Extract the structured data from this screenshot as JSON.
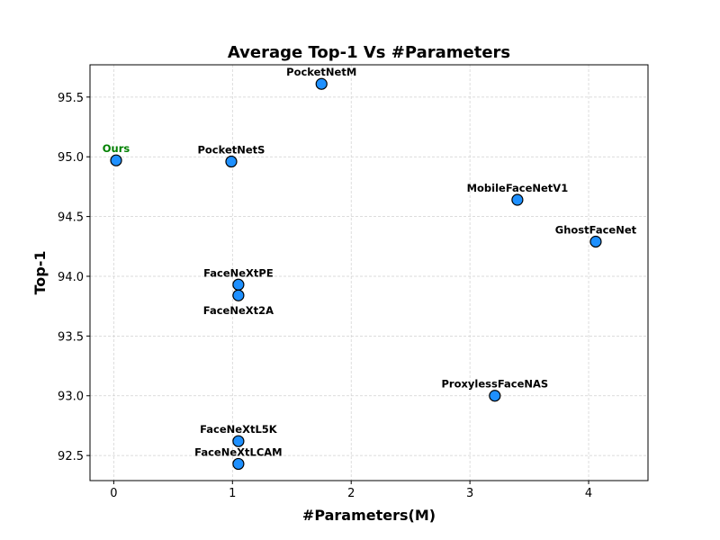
{
  "chart_data": {
    "type": "scatter",
    "title": "Average Top-1 Vs #Parameters",
    "xlabel": "#Parameters(M)",
    "ylabel": "Top-1",
    "xlim": [
      -0.2,
      4.5
    ],
    "ylim": [
      92.29,
      95.77
    ],
    "xticks": [
      0,
      1,
      2,
      3,
      4
    ],
    "xtick_labels": [
      "0",
      "1",
      "2",
      "3",
      "4"
    ],
    "yticks": [
      92.5,
      93.0,
      93.5,
      94.0,
      94.5,
      95.0,
      95.5
    ],
    "ytick_labels": [
      "92.5",
      "93.0",
      "93.5",
      "94.0",
      "94.5",
      "95.0",
      "95.5"
    ],
    "grid": true,
    "marker_color": "#1e90ff",
    "points": [
      {
        "label": "Ours",
        "x": 0.02,
        "y": 94.97,
        "label_pos": "above",
        "color": "#008000"
      },
      {
        "label": "PocketNetS",
        "x": 0.99,
        "y": 94.96,
        "label_pos": "above",
        "color": "#000000"
      },
      {
        "label": "PocketNetM",
        "x": 1.75,
        "y": 95.61,
        "label_pos": "above",
        "color": "#000000"
      },
      {
        "label": "MobileFaceNetV1",
        "x": 3.4,
        "y": 94.64,
        "label_pos": "above",
        "color": "#000000"
      },
      {
        "label": "GhostFaceNet",
        "x": 4.06,
        "y": 94.29,
        "label_pos": "above",
        "color": "#000000"
      },
      {
        "label": "FaceNeXtPE",
        "x": 1.05,
        "y": 93.93,
        "label_pos": "above",
        "color": "#000000"
      },
      {
        "label": "FaceNeXt2A",
        "x": 1.05,
        "y": 93.84,
        "label_pos": "below",
        "color": "#000000"
      },
      {
        "label": "ProxylessFaceNAS",
        "x": 3.21,
        "y": 93.0,
        "label_pos": "above",
        "color": "#000000"
      },
      {
        "label": "FaceNeXtL5K",
        "x": 1.05,
        "y": 92.62,
        "label_pos": "above",
        "color": "#000000"
      },
      {
        "label": "FaceNeXtLCAM",
        "x": 1.05,
        "y": 92.43,
        "label_pos": "above",
        "color": "#000000"
      }
    ]
  }
}
